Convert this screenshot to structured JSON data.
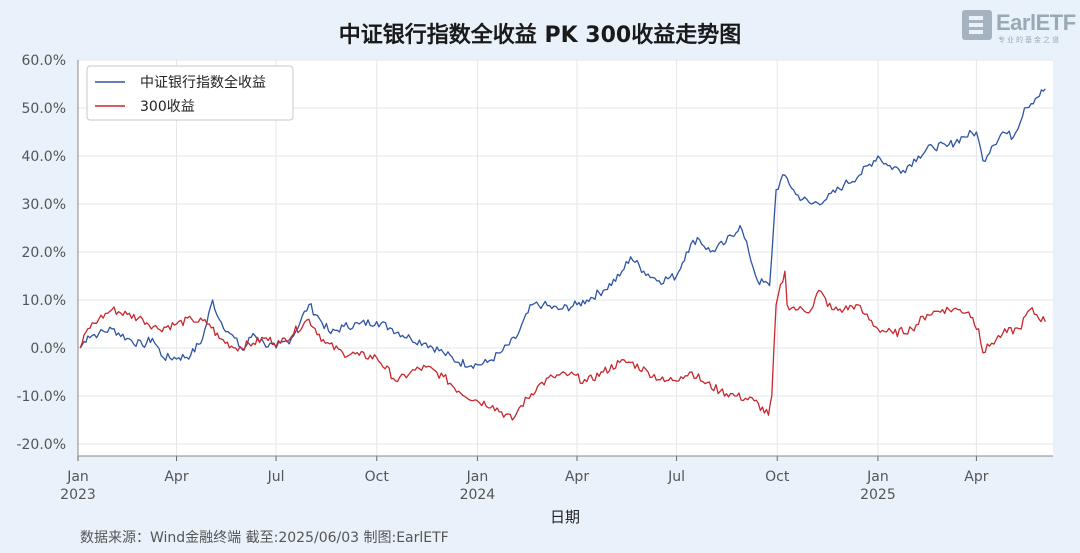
{
  "header": {
    "title": "中证银行指数全收益 PK 300收益走势图",
    "logo_text": "EarlETF",
    "logo_sub": "专业的基金之道"
  },
  "footer": {
    "text": "数据来源：Wind金融终端 截至:2025/06/03 制图:EarlETF"
  },
  "colors": {
    "bank": "#2e55a3",
    "hs300": "#c8282e",
    "grid": "#e3e6ea",
    "plot_bg": "#ffffff"
  },
  "chart_data": {
    "type": "line",
    "title": "中证银行指数全收益 PK 300收益走势图",
    "xlabel": "日期",
    "ylabel": "",
    "ylim": [
      -0.225,
      0.6
    ],
    "yticks": [
      -0.2,
      -0.1,
      0.0,
      0.1,
      0.2,
      0.3,
      0.4,
      0.5,
      0.6
    ],
    "ytick_labels": [
      "-20.0%",
      "-10.0%",
      "0.0%",
      "10.0%",
      "20.0%",
      "30.0%",
      "40.0%",
      "50.0%",
      "60.0%"
    ],
    "xlim": [
      "2023-01-01",
      "2025-06-10"
    ],
    "xticks": [
      {
        "date": "2023-01-01",
        "label": "Jan",
        "year": "2023"
      },
      {
        "date": "2023-04-01",
        "label": "Apr",
        "year": ""
      },
      {
        "date": "2023-07-01",
        "label": "Jul",
        "year": ""
      },
      {
        "date": "2023-10-01",
        "label": "Oct",
        "year": ""
      },
      {
        "date": "2024-01-01",
        "label": "Jan",
        "year": "2024"
      },
      {
        "date": "2024-04-01",
        "label": "Apr",
        "year": ""
      },
      {
        "date": "2024-07-01",
        "label": "Jul",
        "year": ""
      },
      {
        "date": "2024-10-01",
        "label": "Oct",
        "year": ""
      },
      {
        "date": "2025-01-01",
        "label": "Jan",
        "year": "2025"
      },
      {
        "date": "2025-04-01",
        "label": "Apr",
        "year": ""
      }
    ],
    "grid": true,
    "legend_position": "top-left",
    "series": [
      {
        "name": "中证银行指数全收益",
        "color": "#2e55a3",
        "points": [
          [
            "2023-01-03",
            0.0
          ],
          [
            "2023-01-10",
            0.025
          ],
          [
            "2023-01-20",
            0.03
          ],
          [
            "2023-02-01",
            0.04
          ],
          [
            "2023-02-15",
            0.02
          ],
          [
            "2023-03-01",
            0.005
          ],
          [
            "2023-03-10",
            0.02
          ],
          [
            "2023-03-20",
            -0.02
          ],
          [
            "2023-04-03",
            -0.02
          ],
          [
            "2023-04-14",
            -0.015
          ],
          [
            "2023-04-25",
            0.02
          ],
          [
            "2023-05-04",
            0.1
          ],
          [
            "2023-05-10",
            0.06
          ],
          [
            "2023-05-20",
            0.03
          ],
          [
            "2023-06-01",
            -0.005
          ],
          [
            "2023-06-10",
            0.03
          ],
          [
            "2023-06-20",
            0.01
          ],
          [
            "2023-07-01",
            0.0
          ],
          [
            "2023-07-15",
            0.02
          ],
          [
            "2023-07-31",
            0.09
          ],
          [
            "2023-08-10",
            0.06
          ],
          [
            "2023-08-20",
            0.03
          ],
          [
            "2023-09-01",
            0.045
          ],
          [
            "2023-09-15",
            0.05
          ],
          [
            "2023-10-01",
            0.055
          ],
          [
            "2023-10-15",
            0.04
          ],
          [
            "2023-11-01",
            0.02
          ],
          [
            "2023-11-15",
            0.01
          ],
          [
            "2023-12-01",
            -0.01
          ],
          [
            "2023-12-15",
            -0.03
          ],
          [
            "2024-01-01",
            -0.035
          ],
          [
            "2024-01-10",
            -0.03
          ],
          [
            "2024-01-22",
            -0.01
          ],
          [
            "2024-02-05",
            0.02
          ],
          [
            "2024-02-20",
            0.09
          ],
          [
            "2024-03-01",
            0.09
          ],
          [
            "2024-03-15",
            0.08
          ],
          [
            "2024-04-01",
            0.09
          ],
          [
            "2024-04-10",
            0.1
          ],
          [
            "2024-04-25",
            0.12
          ],
          [
            "2024-05-10",
            0.15
          ],
          [
            "2024-05-20",
            0.19
          ],
          [
            "2024-06-01",
            0.16
          ],
          [
            "2024-06-15",
            0.14
          ],
          [
            "2024-07-01",
            0.15
          ],
          [
            "2024-07-10",
            0.2
          ],
          [
            "2024-07-20",
            0.23
          ],
          [
            "2024-08-01",
            0.2
          ],
          [
            "2024-08-15",
            0.22
          ],
          [
            "2024-08-28",
            0.255
          ],
          [
            "2024-09-05",
            0.2
          ],
          [
            "2024-09-13",
            0.14
          ],
          [
            "2024-09-24",
            0.13
          ],
          [
            "2024-09-30",
            0.33
          ],
          [
            "2024-10-08",
            0.36
          ],
          [
            "2024-10-18",
            0.32
          ],
          [
            "2024-11-01",
            0.3
          ],
          [
            "2024-11-15",
            0.31
          ],
          [
            "2024-12-01",
            0.34
          ],
          [
            "2024-12-15",
            0.36
          ],
          [
            "2025-01-01",
            0.4
          ],
          [
            "2025-01-10",
            0.38
          ],
          [
            "2025-01-24",
            0.37
          ],
          [
            "2025-02-07",
            0.4
          ],
          [
            "2025-02-20",
            0.42
          ],
          [
            "2025-03-05",
            0.42
          ],
          [
            "2025-03-20",
            0.44
          ],
          [
            "2025-04-01",
            0.45
          ],
          [
            "2025-04-07",
            0.39
          ],
          [
            "2025-04-15",
            0.42
          ],
          [
            "2025-04-25",
            0.45
          ],
          [
            "2025-05-05",
            0.44
          ],
          [
            "2025-05-15",
            0.5
          ],
          [
            "2025-05-25",
            0.52
          ],
          [
            "2025-06-03",
            0.54
          ]
        ]
      },
      {
        "name": "300收益",
        "color": "#c8282e",
        "points": [
          [
            "2023-01-03",
            0.0
          ],
          [
            "2023-01-10",
            0.04
          ],
          [
            "2023-01-20",
            0.06
          ],
          [
            "2023-02-01",
            0.08
          ],
          [
            "2023-02-15",
            0.07
          ],
          [
            "2023-03-01",
            0.06
          ],
          [
            "2023-03-15",
            0.04
          ],
          [
            "2023-04-01",
            0.05
          ],
          [
            "2023-04-15",
            0.06
          ],
          [
            "2023-05-01",
            0.05
          ],
          [
            "2023-05-10",
            0.02
          ],
          [
            "2023-05-25",
            0.0
          ],
          [
            "2023-06-10",
            0.01
          ],
          [
            "2023-06-20",
            0.02
          ],
          [
            "2023-07-05",
            0.01
          ],
          [
            "2023-07-31",
            0.06
          ],
          [
            "2023-08-15",
            0.01
          ],
          [
            "2023-08-31",
            -0.01
          ],
          [
            "2023-09-15",
            -0.015
          ],
          [
            "2023-10-01",
            -0.02
          ],
          [
            "2023-10-20",
            -0.07
          ],
          [
            "2023-11-01",
            -0.05
          ],
          [
            "2023-11-15",
            -0.04
          ],
          [
            "2023-12-01",
            -0.06
          ],
          [
            "2023-12-15",
            -0.09
          ],
          [
            "2024-01-01",
            -0.11
          ],
          [
            "2024-01-15",
            -0.12
          ],
          [
            "2024-02-02",
            -0.15
          ],
          [
            "2024-02-10",
            -0.12
          ],
          [
            "2024-02-25",
            -0.08
          ],
          [
            "2024-03-10",
            -0.06
          ],
          [
            "2024-03-25",
            -0.055
          ],
          [
            "2024-04-10",
            -0.07
          ],
          [
            "2024-04-25",
            -0.05
          ],
          [
            "2024-05-10",
            -0.03
          ],
          [
            "2024-05-20",
            -0.03
          ],
          [
            "2024-06-05",
            -0.05
          ],
          [
            "2024-06-20",
            -0.07
          ],
          [
            "2024-07-05",
            -0.06
          ],
          [
            "2024-07-15",
            -0.05
          ],
          [
            "2024-07-25",
            -0.07
          ],
          [
            "2024-08-10",
            -0.09
          ],
          [
            "2024-08-25",
            -0.1
          ],
          [
            "2024-09-10",
            -0.11
          ],
          [
            "2024-09-23",
            -0.14
          ],
          [
            "2024-09-26",
            -0.1
          ],
          [
            "2024-09-30",
            0.09
          ],
          [
            "2024-10-08",
            0.16
          ],
          [
            "2024-10-10",
            0.09
          ],
          [
            "2024-10-20",
            0.08
          ],
          [
            "2024-11-01",
            0.08
          ],
          [
            "2024-11-08",
            0.12
          ],
          [
            "2024-11-20",
            0.08
          ],
          [
            "2024-12-01",
            0.08
          ],
          [
            "2024-12-12",
            0.09
          ],
          [
            "2024-12-20",
            0.07
          ],
          [
            "2025-01-01",
            0.04
          ],
          [
            "2025-01-15",
            0.03
          ],
          [
            "2025-02-01",
            0.04
          ],
          [
            "2025-02-15",
            0.07
          ],
          [
            "2025-03-01",
            0.08
          ],
          [
            "2025-03-15",
            0.08
          ],
          [
            "2025-03-25",
            0.075
          ],
          [
            "2025-04-03",
            0.04
          ],
          [
            "2025-04-07",
            -0.01
          ],
          [
            "2025-04-15",
            0.01
          ],
          [
            "2025-04-25",
            0.03
          ],
          [
            "2025-05-10",
            0.04
          ],
          [
            "2025-05-20",
            0.08
          ],
          [
            "2025-06-03",
            0.055
          ]
        ]
      }
    ]
  }
}
